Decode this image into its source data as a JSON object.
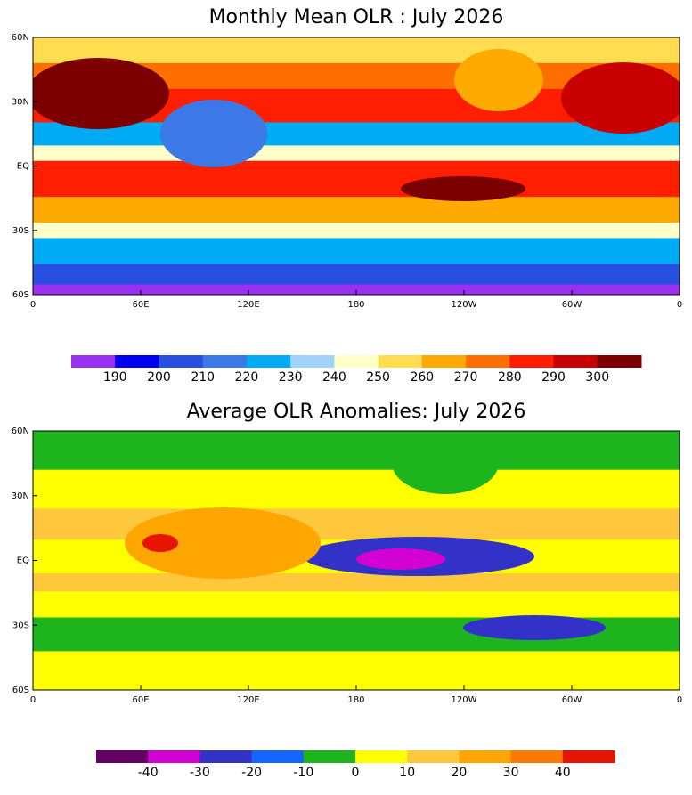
{
  "panels": [
    {
      "title": "Monthly Mean OLR : July 2026",
      "lat_labels": [
        "60N",
        "30N",
        "EQ",
        "30S",
        "60S"
      ],
      "lon_labels": [
        "0",
        "60E",
        "120E",
        "180",
        "120W",
        "60W",
        "0"
      ],
      "colorbar": {
        "colors": [
          "#9a30f0",
          "#0000f0",
          "#2850e0",
          "#3c78e6",
          "#00aaf5",
          "#a0d2fa",
          "#ffffc8",
          "#ffdc50",
          "#ffaa00",
          "#ff6e00",
          "#ff1e00",
          "#c80000",
          "#7d0000"
        ],
        "labels": [
          190,
          200,
          210,
          220,
          230,
          240,
          250,
          260,
          270,
          280,
          290,
          300
        ]
      }
    },
    {
      "title": "Average OLR Anomalies: July 2026",
      "lat_labels": [
        "60N",
        "30N",
        "EQ",
        "30S",
        "60S"
      ],
      "lon_labels": [
        "0",
        "60E",
        "120E",
        "180",
        "120W",
        "60W",
        "0"
      ],
      "colorbar": {
        "colors": [
          "#640064",
          "#d200d2",
          "#3232c8",
          "#1464ff",
          "#1eb41e",
          "#ffff00",
          "#ffc83c",
          "#ffa500",
          "#ff7800",
          "#e61400"
        ],
        "labels": [
          -40,
          -30,
          -20,
          -10,
          0,
          10,
          20,
          30,
          40
        ]
      }
    }
  ]
}
